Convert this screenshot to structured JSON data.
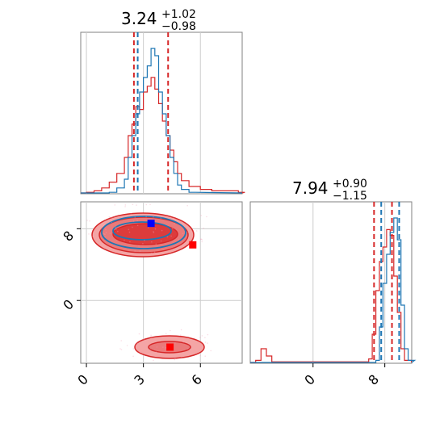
{
  "chart_data": {
    "type": "corner",
    "colors": {
      "blue": "#1f77b4",
      "red": "#d62728",
      "red_fill": "#f08080",
      "axes": "#808080",
      "grid": "#cccccc"
    },
    "params": [
      {
        "title_median": "3.24",
        "title_upper": "+1.02",
        "title_lower": "−0.98",
        "lim": [
          -0.3,
          8.2
        ]
      },
      {
        "title_median": "7.94",
        "title_upper": "+0.90",
        "title_lower": "−1.15",
        "lim": [
          -7.0,
          11.0
        ]
      }
    ],
    "tick_labels": {
      "x0": [
        "0",
        "3",
        "6"
      ],
      "y1": [
        "8",
        "0"
      ],
      "x1": [
        "0",
        "8"
      ]
    },
    "tick_values": {
      "x0": [
        0,
        3,
        6
      ],
      "y1": [
        8,
        0
      ],
      "x1": [
        0,
        8
      ]
    },
    "hist1": {
      "quantiles_red": [
        2.5,
        4.3
      ],
      "quantiles_blue": [
        2.7
      ],
      "blue_x": [
        1.2,
        1.6,
        2.0,
        2.2,
        2.4,
        2.6,
        2.8,
        3.0,
        3.2,
        3.4,
        3.6,
        3.8,
        4.0,
        4.2,
        4.4,
        4.6,
        4.8,
        5.0,
        5.4
      ],
      "blue_y": [
        0.01,
        0.04,
        0.1,
        0.25,
        0.4,
        0.55,
        0.7,
        0.8,
        0.88,
        1.0,
        0.95,
        0.7,
        0.55,
        0.4,
        0.25,
        0.14,
        0.06,
        0.03,
        0.01
      ],
      "red_x": [
        0.0,
        0.4,
        0.8,
        1.2,
        1.6,
        2.0,
        2.2,
        2.4,
        2.6,
        2.8,
        3.0,
        3.2,
        3.4,
        3.6,
        3.8,
        4.0,
        4.2,
        4.4,
        4.6,
        4.8,
        5.0,
        5.4,
        6.0,
        6.6,
        7.2,
        8.0
      ],
      "red_y": [
        0.01,
        0.02,
        0.04,
        0.08,
        0.14,
        0.25,
        0.4,
        0.48,
        0.6,
        0.58,
        0.7,
        0.74,
        0.8,
        0.72,
        0.62,
        0.5,
        0.4,
        0.3,
        0.22,
        0.14,
        0.09,
        0.05,
        0.03,
        0.02,
        0.02,
        0.01
      ]
    },
    "hist2": {
      "quantiles_red": [
        6.8,
        8.8
      ],
      "quantiles_blue": [
        7.6,
        9.6
      ],
      "blue_x": [
        7.0,
        7.4,
        7.8,
        8.2,
        8.6,
        9.0,
        9.4,
        9.8,
        10.2,
        10.6
      ],
      "blue_y": [
        0.02,
        0.25,
        0.55,
        0.75,
        0.9,
        1.0,
        0.85,
        0.4,
        0.1,
        0.02
      ],
      "red_x": [
        -6.4,
        -5.8,
        -5.2,
        -4.6,
        6.2,
        6.6,
        7.0,
        7.4,
        7.8,
        8.2,
        8.6,
        9.0,
        9.4,
        9.8,
        10.2
      ],
      "red_y": [
        0.02,
        0.1,
        0.05,
        0.01,
        0.03,
        0.2,
        0.5,
        0.7,
        0.8,
        0.92,
        0.88,
        0.6,
        0.35,
        0.1,
        0.02
      ]
    },
    "scatter2d": {
      "red_marker_points": [
        {
          "x": 5.6,
          "y": 6.2
        },
        {
          "x": 4.4,
          "y": -5.2
        }
      ],
      "blue_marker_point": {
        "x": 3.4,
        "y": 8.6
      },
      "upper_mode_center": {
        "x": 3.2,
        "y": 8.2
      },
      "lower_mode_center": {
        "x": 4.4,
        "y": -5.0
      }
    }
  }
}
